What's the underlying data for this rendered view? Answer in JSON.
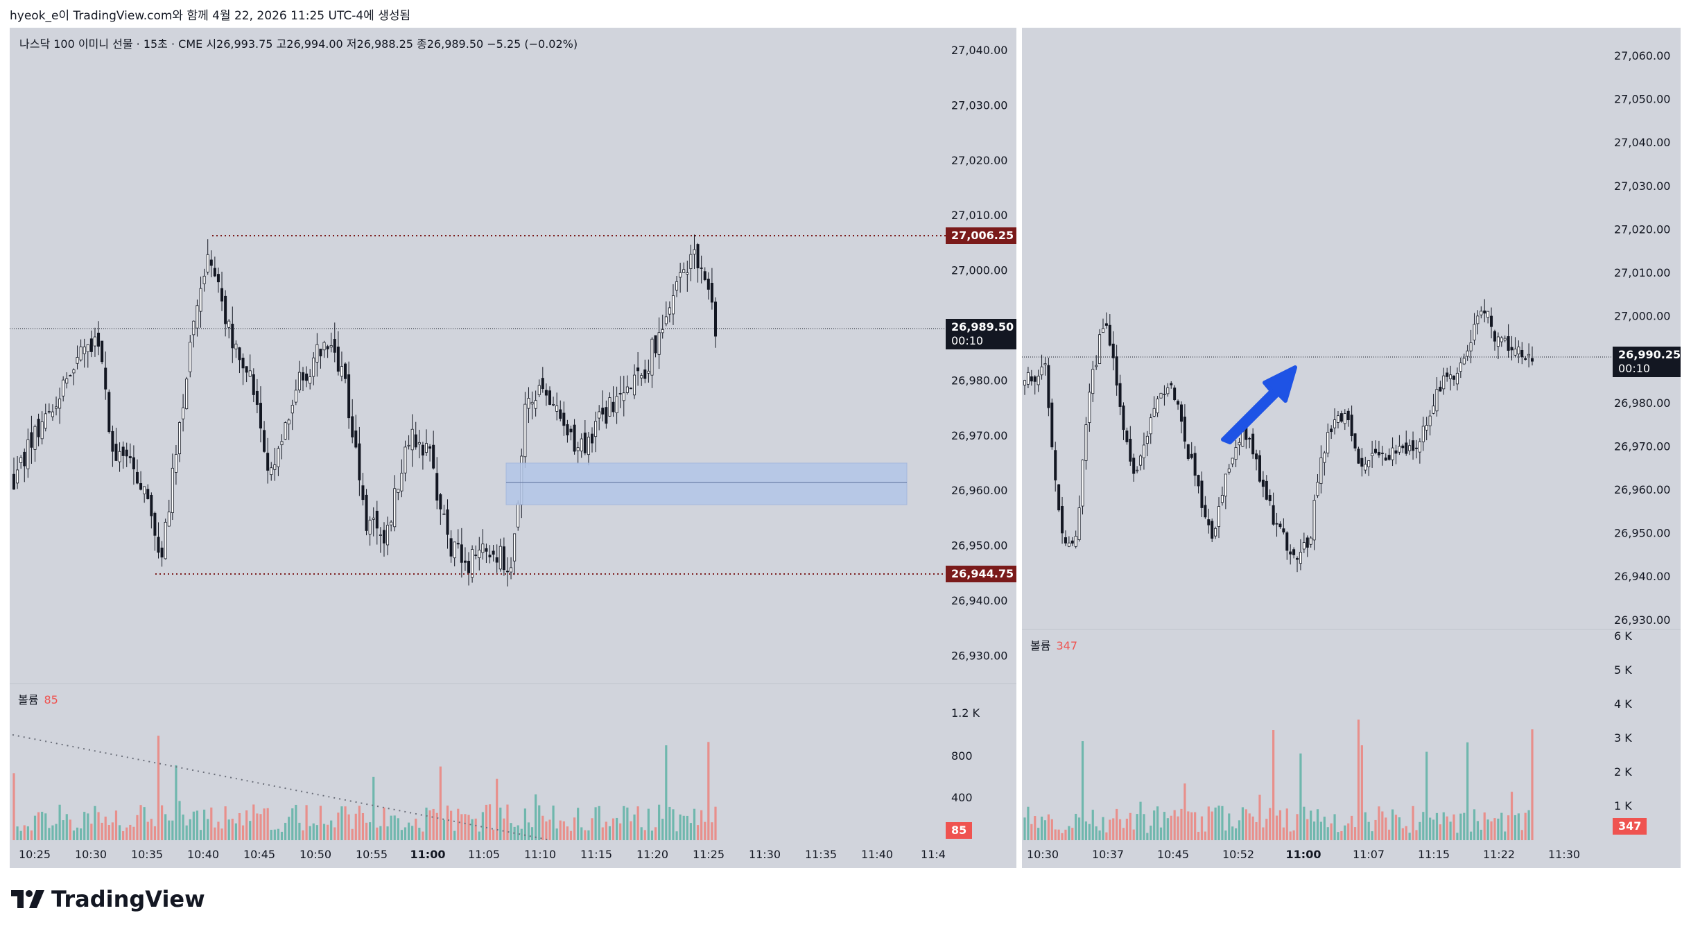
{
  "caption": "hyeok_e이 TradingView.com와 함께 4월 22, 2026 11:25 UTC-4에 생성됨",
  "brand": {
    "name": "TradingView",
    "icon": "tradingview-logo-icon"
  },
  "left_chart": {
    "legend": "나스닥 100 이미니 선물 · 15초 · CME   시26,993.75  고26,994.00  저26,988.25  종26,989.50  −5.25 (−0.02%)",
    "price_ticks": [
      "27,040.00",
      "27,030.00",
      "27,020.00",
      "27,010.00",
      "27,000.00",
      "26,990.00",
      "26,980.00",
      "26,970.00",
      "26,960.00",
      "26,950.00",
      "26,940.00",
      "26,930.00"
    ],
    "price_tick_values": [
      27040,
      27030,
      27020,
      27010,
      27000,
      26990,
      26980,
      26970,
      26960,
      26950,
      26940,
      26930
    ],
    "last_price": "26,989.50",
    "countdown": "00:10",
    "level_high": "27,006.25",
    "level_low": "26,944.75",
    "volume_label": "볼륨",
    "volume_value": "85",
    "volume_ticks": [
      "1.2 K",
      "800",
      "400"
    ],
    "time_ticks": [
      "10:25",
      "10:30",
      "10:35",
      "10:40",
      "10:45",
      "10:50",
      "10:55",
      "11:00",
      "11:05",
      "11:10",
      "11:15",
      "11:20",
      "11:25",
      "11:30",
      "11:35",
      "11:40",
      "11:4"
    ],
    "bold_time_tick": "11:00"
  },
  "right_chart": {
    "price_ticks": [
      "27,060.00",
      "27,050.00",
      "27,040.00",
      "27,030.00",
      "27,020.00",
      "27,010.00",
      "27,000.00",
      "26,990.00",
      "26,980.00",
      "26,970.00",
      "26,960.00",
      "26,950.00",
      "26,940.00",
      "26,930.00"
    ],
    "last_price": "26,990.25",
    "countdown": "00:10",
    "volume_label": "볼륨",
    "volume_value": "347",
    "volume_ticks": [
      "6 K",
      "5 K",
      "4 K",
      "3 K",
      "2 K",
      "1 K"
    ],
    "time_ticks": [
      "10:30",
      "10:37",
      "10:45",
      "10:52",
      "11:00",
      "11:07",
      "11:15",
      "11:22",
      "11:30"
    ],
    "bold_time_tick": "11:00"
  },
  "colors": {
    "background": "#d1d4dc",
    "candle": "#131722",
    "volume_up": "#6fb7ad",
    "volume_down": "#e88f8b",
    "level_line": "#7a1a1a",
    "zone_fill": "#b3c6e8",
    "arrow": "#1e53e5"
  }
}
